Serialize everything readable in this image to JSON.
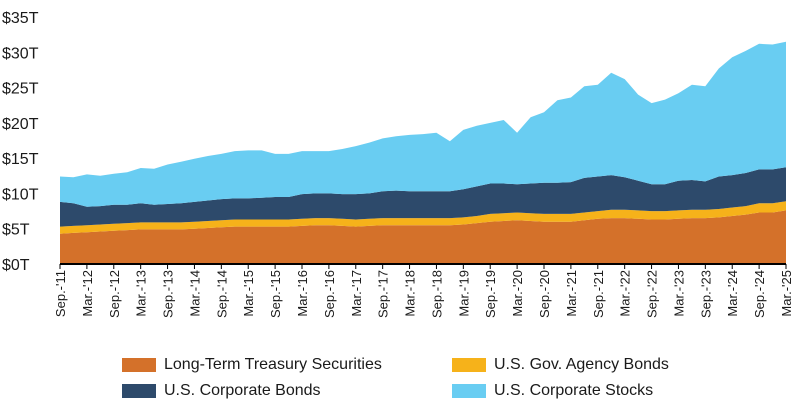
{
  "chart_data": {
    "type": "area",
    "stacked": true,
    "title": "",
    "xlabel": "",
    "ylabel": "",
    "ylim": [
      0,
      35
    ],
    "y_ticks": [
      0,
      5,
      10,
      15,
      20,
      25,
      30,
      35
    ],
    "y_tick_labels": [
      "$0T",
      "$5T",
      "$10T",
      "$15T",
      "$20T",
      "$25T",
      "$30T",
      "$35T"
    ],
    "x_tick_labels": [
      "Sep.-'11",
      "Mar.-'12",
      "Sep.-'12",
      "Mar.-'13",
      "Sep.-'13",
      "Mar.-'14",
      "Sep.-'14",
      "Mar.-'15",
      "Sep.-'15",
      "Mar.-'16",
      "Sep.-'16",
      "Mar.-'17",
      "Sep.-'17",
      "Mar.-'18",
      "Sep.-'18",
      "Mar.-'19",
      "Sep.-'19",
      "Mar.-'20",
      "Sep.-'20",
      "Mar.-'21",
      "Sep.-'21",
      "Mar.-'22",
      "Sep.-'22",
      "Mar.-'23",
      "Sep.-'23",
      "Mar.-'24",
      "Sep.-'24",
      "Mar.-'25"
    ],
    "x": [
      "2011-09",
      "2011-12",
      "2012-03",
      "2012-06",
      "2012-09",
      "2012-12",
      "2013-03",
      "2013-06",
      "2013-09",
      "2013-12",
      "2014-03",
      "2014-06",
      "2014-09",
      "2014-12",
      "2015-03",
      "2015-06",
      "2015-09",
      "2015-12",
      "2016-03",
      "2016-06",
      "2016-09",
      "2016-12",
      "2017-03",
      "2017-06",
      "2017-09",
      "2017-12",
      "2018-03",
      "2018-06",
      "2018-09",
      "2018-12",
      "2019-03",
      "2019-06",
      "2019-09",
      "2019-12",
      "2020-03",
      "2020-06",
      "2020-09",
      "2020-12",
      "2021-03",
      "2021-06",
      "2021-09",
      "2021-12",
      "2022-03",
      "2022-06",
      "2022-09",
      "2022-12",
      "2023-03",
      "2023-06",
      "2023-09",
      "2023-12",
      "2024-03",
      "2024-06",
      "2024-09",
      "2024-12",
      "2025-03"
    ],
    "legend_position": "bottom",
    "grid": false,
    "series": [
      {
        "name": "Long-Term Treasury Securities",
        "color": "#d4712a",
        "values": [
          4.3,
          4.4,
          4.5,
          4.6,
          4.7,
          4.8,
          4.9,
          4.9,
          4.9,
          4.9,
          5.0,
          5.1,
          5.2,
          5.3,
          5.3,
          5.3,
          5.3,
          5.3,
          5.4,
          5.5,
          5.5,
          5.4,
          5.3,
          5.4,
          5.5,
          5.5,
          5.5,
          5.5,
          5.5,
          5.5,
          5.6,
          5.8,
          6.0,
          6.1,
          6.2,
          6.1,
          6.0,
          6.0,
          6.0,
          6.2,
          6.4,
          6.5,
          6.5,
          6.4,
          6.3,
          6.3,
          6.4,
          6.5,
          6.5,
          6.6,
          6.8,
          7.0,
          7.3,
          7.3,
          7.6
        ]
      },
      {
        "name": "U.S. Gov. Agency Bonds",
        "color": "#f6b21a",
        "values": [
          1.0,
          1.0,
          1.0,
          1.0,
          1.0,
          1.0,
          1.0,
          1.0,
          1.0,
          1.0,
          1.0,
          1.0,
          1.0,
          1.0,
          1.0,
          1.0,
          1.0,
          1.0,
          1.0,
          1.0,
          1.0,
          1.0,
          1.0,
          1.0,
          1.0,
          1.0,
          1.0,
          1.0,
          1.0,
          1.0,
          1.0,
          1.0,
          1.1,
          1.1,
          1.1,
          1.1,
          1.1,
          1.1,
          1.1,
          1.1,
          1.1,
          1.2,
          1.2,
          1.2,
          1.2,
          1.2,
          1.2,
          1.2,
          1.2,
          1.2,
          1.2,
          1.2,
          1.3,
          1.3,
          1.3
        ]
      },
      {
        "name": "U.S. Corporate Bonds",
        "color": "#2d4a6b",
        "values": [
          3.5,
          3.2,
          2.6,
          2.6,
          2.7,
          2.6,
          2.7,
          2.5,
          2.6,
          2.7,
          2.8,
          2.9,
          3.0,
          3.0,
          3.0,
          3.1,
          3.2,
          3.2,
          3.5,
          3.5,
          3.5,
          3.5,
          3.6,
          3.6,
          3.8,
          3.9,
          3.8,
          3.8,
          3.8,
          3.8,
          4.0,
          4.2,
          4.3,
          4.2,
          4.0,
          4.2,
          4.4,
          4.4,
          4.5,
          4.9,
          4.9,
          4.9,
          4.6,
          4.2,
          3.8,
          3.8,
          4.2,
          4.2,
          4.0,
          4.6,
          4.6,
          4.7,
          4.8,
          4.8,
          4.8
        ]
      },
      {
        "name": "U.S. Corporate Stocks",
        "color": "#69cdf2",
        "values": [
          3.6,
          3.7,
          4.6,
          4.3,
          4.4,
          4.6,
          5.0,
          5.1,
          5.6,
          5.9,
          6.1,
          6.3,
          6.4,
          6.7,
          6.8,
          6.7,
          6.1,
          6.1,
          6.1,
          6.0,
          6.0,
          6.4,
          6.8,
          7.2,
          7.5,
          7.7,
          8.0,
          8.1,
          8.3,
          7.1,
          8.4,
          8.6,
          8.6,
          9.0,
          7.3,
          9.4,
          10.0,
          11.7,
          12.0,
          13.0,
          13.0,
          14.5,
          13.9,
          12.2,
          11.5,
          12.0,
          12.4,
          13.5,
          13.5,
          15.3,
          16.7,
          17.3,
          17.8,
          17.7,
          17.8
        ]
      }
    ]
  }
}
